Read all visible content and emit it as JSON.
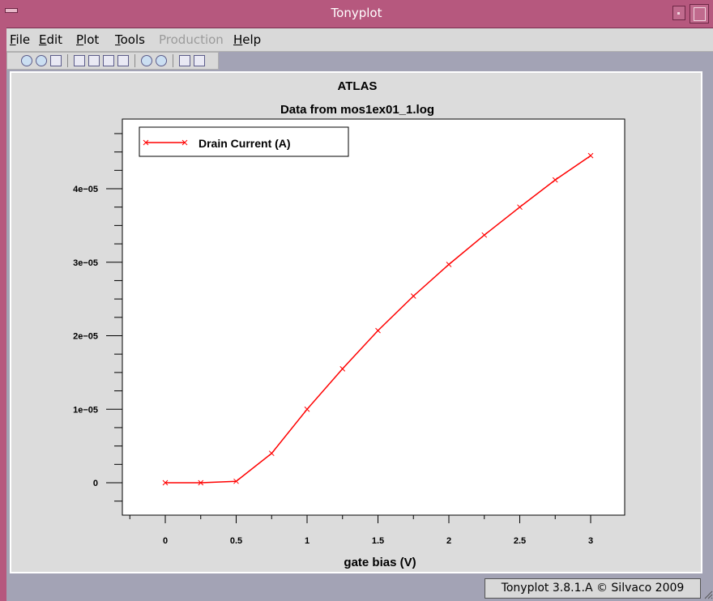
{
  "window": {
    "title": "Tonyplot"
  },
  "menu": {
    "items": [
      {
        "label": "File",
        "accel": "F",
        "rest": "ile",
        "disabled": false
      },
      {
        "label": "Edit",
        "accel": "E",
        "rest": "dit",
        "disabled": false
      },
      {
        "label": "Plot",
        "accel": "P",
        "rest": "lot",
        "disabled": false
      },
      {
        "label": "Tools",
        "accel": "T",
        "rest": "ools",
        "disabled": false
      },
      {
        "label": "Production",
        "accel": "",
        "rest": "Production",
        "disabled": true
      },
      {
        "label": "Help",
        "accel": "H",
        "rest": "elp",
        "disabled": false
      }
    ]
  },
  "toolbar": {
    "icons": [
      "open-icon",
      "load-icon",
      "print-icon",
      "zoom-region-icon",
      "copy-icon",
      "paste-icon",
      "overlay-icon",
      "zoom-in-icon",
      "zoom-out-icon",
      "pan-left-icon",
      "pan-right-icon"
    ]
  },
  "chart_data": {
    "type": "line",
    "title": "ATLAS",
    "subtitle": "Data from mos1ex01_1.log",
    "xlabel": "gate bias (V)",
    "ylabel": "",
    "xlim": [
      -0.3,
      3.3
    ],
    "ylim": [
      -4e-06,
      4.8e-05
    ],
    "x_ticks": [
      0,
      0.5,
      1,
      1.5,
      2,
      2.5,
      3
    ],
    "x_tick_labels": [
      "0",
      "0.5",
      "1",
      "1.5",
      "2",
      "2.5",
      "3"
    ],
    "y_ticks": [
      0,
      1e-05,
      2e-05,
      3e-05,
      4e-05
    ],
    "y_tick_labels": [
      "0",
      "1e−05",
      "2e−05",
      "3e−05",
      "4e−05"
    ],
    "grid": false,
    "legend_position": "top-left",
    "series": [
      {
        "name": "Drain Current (A)",
        "color": "#ff0000",
        "marker": "x",
        "x": [
          0,
          0.25,
          0.5,
          0.75,
          1.0,
          1.25,
          1.5,
          1.75,
          2.0,
          2.25,
          2.5,
          2.75,
          3.0
        ],
        "y": [
          0,
          0,
          2e-07,
          4e-06,
          1e-05,
          1.55e-05,
          2.07e-05,
          2.54e-05,
          2.97e-05,
          3.37e-05,
          3.75e-05,
          4.12e-05,
          4.45e-05
        ]
      }
    ]
  },
  "status": {
    "text": "Tonyplot 3.8.1.A © Silvaco 2009"
  }
}
